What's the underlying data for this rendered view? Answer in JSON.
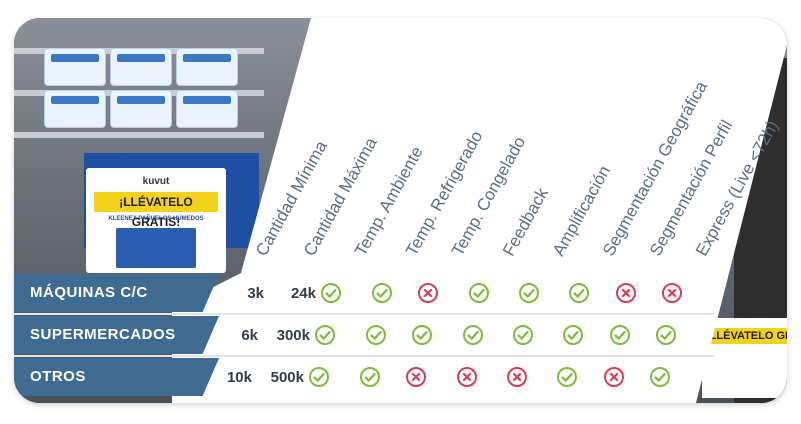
{
  "columns": [
    "Cantidad Mínima",
    "Cantidad Máxima",
    "Temp. Ambiente",
    "Temp. Refrigerado",
    "Temp. Congelado",
    "Feedback",
    "Amplificación",
    "Segmentación Geográfica",
    "Segmentación Perfil",
    "Express (Live <72h)"
  ],
  "rows": [
    {
      "label": "MÁQUINAS C/C",
      "min": "3k",
      "max": "24k",
      "features": [
        true,
        true,
        false,
        true,
        true,
        true,
        false,
        false
      ]
    },
    {
      "label": "SUPERMERCADOS",
      "min": "6k",
      "max": "300k",
      "features": [
        true,
        true,
        true,
        true,
        true,
        true,
        true,
        true
      ]
    },
    {
      "label": "OTROS",
      "min": "10k",
      "max": "500k",
      "features": [
        true,
        true,
        false,
        false,
        false,
        true,
        false,
        true
      ]
    }
  ],
  "photo_text": {
    "promo_brand": "kuvut",
    "promo_band": "¡LLÉVATELO GRATIS!",
    "promo_sub": "KLEENEX PAÑUELOS HÚMEDOS",
    "right_band": "¡LLÉVATELO GRATIS"
  },
  "colors": {
    "check": "#7dbb3c",
    "cross": "#d93a5e",
    "row_label_bg": "#3f6a91",
    "header_text": "#5b6f84"
  }
}
